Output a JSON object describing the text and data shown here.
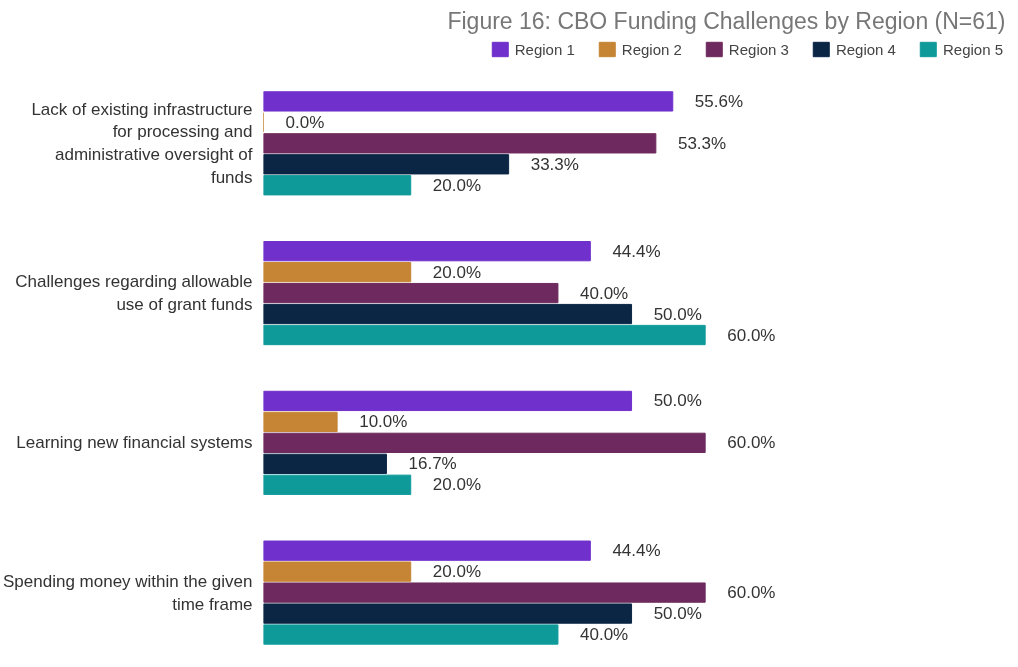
{
  "chart_data": {
    "type": "bar",
    "orientation": "horizontal",
    "title": "Figure 16: CBO Funding Challenges by Region (N=61)",
    "categories": [
      "Lack of existing infrastructure for processing and administrative oversight of funds",
      "Challenges regarding allowable use of grant funds",
      "Learning new financial systems",
      "Spending money within the given time frame"
    ],
    "series": [
      {
        "name": "Region 1",
        "color": "#7030cc",
        "values": [
          55.6,
          44.4,
          50.0,
          44.4
        ],
        "value_labels": [
          "55.6%",
          "44.4%",
          "50.0%",
          "44.4%"
        ]
      },
      {
        "name": "Region 2",
        "color": "#c58534",
        "values": [
          0.0,
          20.0,
          10.0,
          20.0
        ],
        "value_labels": [
          "0.0%",
          "20.0%",
          "10.0%",
          "20.0%"
        ]
      },
      {
        "name": "Region 3",
        "color": "#6e2a5e",
        "values": [
          53.3,
          40.0,
          60.0,
          60.0
        ],
        "value_labels": [
          "53.3%",
          "40.0%",
          "60.0%",
          "60.0%"
        ]
      },
      {
        "name": "Region 4",
        "color": "#0b2545",
        "values": [
          33.3,
          50.0,
          16.7,
          50.0
        ],
        "value_labels": [
          "33.3%",
          "50.0%",
          "16.7%",
          "50.0%"
        ]
      },
      {
        "name": "Region 5",
        "color": "#0f9a9a",
        "values": [
          20.0,
          60.0,
          20.0,
          40.0
        ],
        "value_labels": [
          "20.0%",
          "60.0%",
          "20.0%",
          "40.0%"
        ]
      }
    ],
    "legend": "top",
    "grid": false
  }
}
